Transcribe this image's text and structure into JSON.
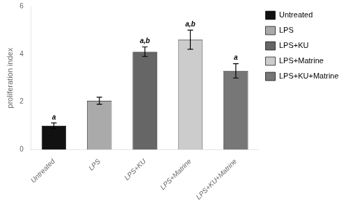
{
  "chart_data": {
    "type": "bar",
    "categories": [
      "Untreated",
      "LPS",
      "LPS+KU",
      "LPS+Matrine",
      "LPS+KU+Matrine"
    ],
    "values": [
      1.0,
      2.05,
      4.1,
      4.6,
      3.3
    ],
    "errors": [
      0.12,
      0.15,
      0.2,
      0.4,
      0.3
    ],
    "colors": [
      "#111111",
      "#aaaaaa",
      "#666666",
      "#cccccc",
      "#777777"
    ],
    "annotations": [
      {
        "category": "Untreated",
        "text": "a"
      },
      {
        "category": "LPS+KU",
        "text": "a,b"
      },
      {
        "category": "LPS+Matrine",
        "text": "a,b"
      },
      {
        "category": "LPS+KU+Matrine",
        "text": "a"
      }
    ],
    "ylabel": "proliferation index",
    "ylim": [
      0,
      6
    ],
    "yticks": [
      0,
      2,
      4,
      6
    ],
    "grid": false,
    "legend": "right"
  }
}
